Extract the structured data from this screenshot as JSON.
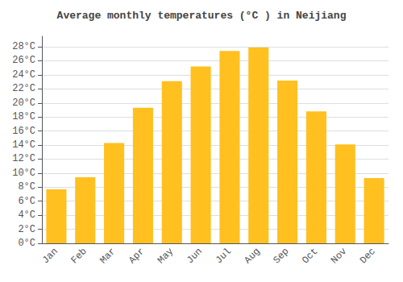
{
  "chart_data": {
    "type": "bar",
    "title": "Average monthly temperatures (°C ) in Neijiang",
    "categories": [
      "Jan",
      "Feb",
      "Mar",
      "Apr",
      "May",
      "Jun",
      "Jul",
      "Aug",
      "Sep",
      "Oct",
      "Nov",
      "Dec"
    ],
    "values": [
      7.7,
      9.4,
      14.3,
      19.3,
      23.1,
      25.2,
      27.4,
      27.9,
      23.2,
      18.8,
      14.1,
      9.3
    ],
    "color": "#FFC020",
    "ylim": [
      0,
      29.5
    ],
    "yticks": [
      {
        "value": 0,
        "label": "0°C"
      },
      {
        "value": 2,
        "label": "2°C"
      },
      {
        "value": 4,
        "label": "4°C"
      },
      {
        "value": 6,
        "label": "6°C"
      },
      {
        "value": 8,
        "label": "8°C"
      },
      {
        "value": 10,
        "label": "10°C"
      },
      {
        "value": 12,
        "label": "12°C"
      },
      {
        "value": 14,
        "label": "14°C"
      },
      {
        "value": 16,
        "label": "16°C"
      },
      {
        "value": 18,
        "label": "18°C"
      },
      {
        "value": 20,
        "label": "20°C"
      },
      {
        "value": 22,
        "label": "22°C"
      },
      {
        "value": 24,
        "label": "24°C"
      },
      {
        "value": 26,
        "label": "26°C"
      },
      {
        "value": 28,
        "label": "28°C"
      }
    ],
    "grid": true
  }
}
